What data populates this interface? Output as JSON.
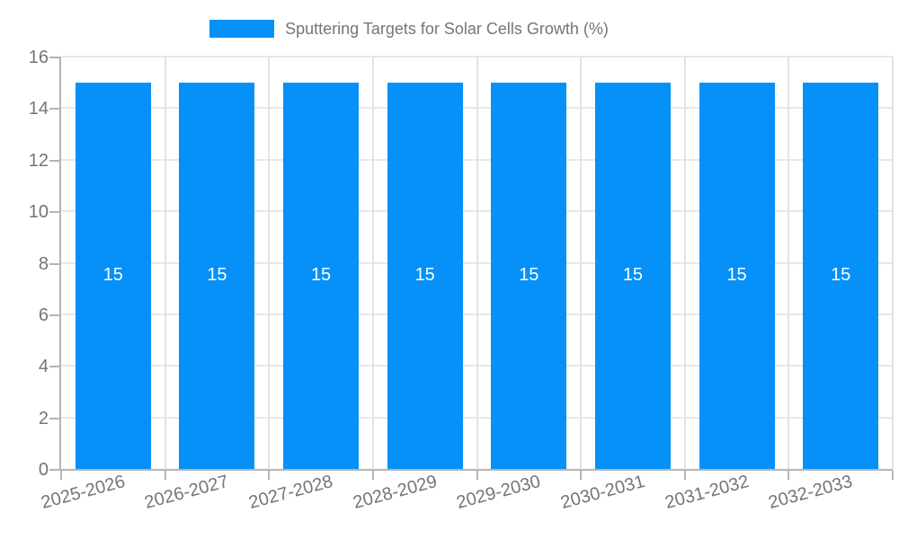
{
  "chart_data": {
    "type": "bar",
    "title": "Sputtering Targets for Solar Cells Growth (%)",
    "legend_position": "top",
    "categories": [
      "2025-2026",
      "2026-2027",
      "2027-2028",
      "2028-2029",
      "2029-2030",
      "2030-2031",
      "2031-2032",
      "2032-2033"
    ],
    "series": [
      {
        "name": "Sputtering Targets for Solar Cells Growth (%)",
        "values": [
          15,
          15,
          15,
          15,
          15,
          15,
          15,
          15
        ]
      }
    ],
    "bar_value_labels": [
      "15",
      "15",
      "15",
      "15",
      "15",
      "15",
      "15",
      "15"
    ],
    "xlabel": "",
    "ylabel": "",
    "ylim": [
      0,
      16
    ],
    "yticks": [
      0,
      2,
      4,
      6,
      8,
      10,
      12,
      14,
      16
    ],
    "grid": true,
    "x_label_rotation_deg": -15,
    "colors": {
      "bar": "#0591f8",
      "axis": "#b5b5b5",
      "gridline": "#e8e8e8",
      "tick_text": "#757575",
      "legend_text": "#757575",
      "bar_label_text": "#ffffff",
      "background": "#ffffff"
    }
  }
}
